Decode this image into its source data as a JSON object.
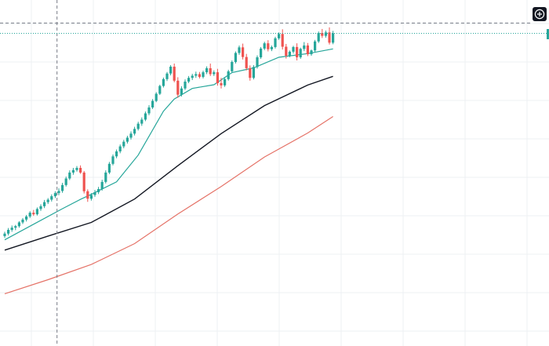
{
  "colors": {
    "background": "#ffffff",
    "grid": "#eef0f3",
    "up": "#26a69a",
    "down": "#ef5350",
    "ma_fast": "#26a69a",
    "ma_mid": "#131722",
    "ma_slow": "#e57368",
    "crosshair": "#787b86",
    "last_price_line": "#26a69a"
  },
  "icons": {
    "add_button": "plus-circle-icon"
  },
  "chart_data": {
    "type": "candlestick",
    "title": "",
    "xlabel": "",
    "ylabel": "",
    "x_range": [
      0,
      96
    ],
    "ylim": [
      0,
      100
    ],
    "grid": true,
    "legend": "none",
    "crosshair": {
      "x": 14.5,
      "y": 92.6
    },
    "last_price": 89.3,
    "candles": [
      [
        24.2,
        25.6,
        23.6,
        25.0
      ],
      [
        25.0,
        26.8,
        24.4,
        26.2
      ],
      [
        26.2,
        27.6,
        25.6,
        26.9
      ],
      [
        26.9,
        27.8,
        26.1,
        27.4
      ],
      [
        27.4,
        29.0,
        26.9,
        28.6
      ],
      [
        28.6,
        30.0,
        28.1,
        29.5
      ],
      [
        29.5,
        31.0,
        28.9,
        30.5
      ],
      [
        30.5,
        32.2,
        30.0,
        31.7
      ],
      [
        31.7,
        32.6,
        30.7,
        31.2
      ],
      [
        31.2,
        33.4,
        30.8,
        32.9
      ],
      [
        32.9,
        34.4,
        32.3,
        33.8
      ],
      [
        33.8,
        35.8,
        33.2,
        35.1
      ],
      [
        35.1,
        36.4,
        34.5,
        35.9
      ],
      [
        35.9,
        37.6,
        35.3,
        37.0
      ],
      [
        37.0,
        38.6,
        36.4,
        38.0
      ],
      [
        38.0,
        39.5,
        37.3,
        38.7
      ],
      [
        38.7,
        41.3,
        38.1,
        40.6
      ],
      [
        40.6,
        43.3,
        40.1,
        42.7
      ],
      [
        42.7,
        45.3,
        42.2,
        44.6
      ],
      [
        44.6,
        46.1,
        43.9,
        45.4
      ],
      [
        45.4,
        46.7,
        44.9,
        46.1
      ],
      [
        46.1,
        46.9,
        44.2,
        44.6
      ],
      [
        44.6,
        45.1,
        37.9,
        38.6
      ],
      [
        38.6,
        39.2,
        35.2,
        36.2
      ],
      [
        36.2,
        38.0,
        35.6,
        37.4
      ],
      [
        37.4,
        39.0,
        36.8,
        38.3
      ],
      [
        38.3,
        40.0,
        37.7,
        39.3
      ],
      [
        39.3,
        42.3,
        38.8,
        41.6
      ],
      [
        41.6,
        45.3,
        41.1,
        44.6
      ],
      [
        44.6,
        48.0,
        44.1,
        47.4
      ],
      [
        47.4,
        50.4,
        46.9,
        49.8
      ],
      [
        49.8,
        52.0,
        49.2,
        51.4
      ],
      [
        51.4,
        53.6,
        50.8,
        53.0
      ],
      [
        53.0,
        55.1,
        52.4,
        54.5
      ],
      [
        54.5,
        56.4,
        53.9,
        55.8
      ],
      [
        55.8,
        57.8,
        55.2,
        57.1
      ],
      [
        57.1,
        59.3,
        56.5,
        58.6
      ],
      [
        58.6,
        60.9,
        58.1,
        60.3
      ],
      [
        60.3,
        62.3,
        59.6,
        61.6
      ],
      [
        61.6,
        64.2,
        61.1,
        63.6
      ],
      [
        63.6,
        66.2,
        63.0,
        65.5
      ],
      [
        65.5,
        68.2,
        65.0,
        67.6
      ],
      [
        67.6,
        70.4,
        67.2,
        69.9
      ],
      [
        69.9,
        72.8,
        69.5,
        72.4
      ],
      [
        72.4,
        75.1,
        71.9,
        74.6
      ],
      [
        74.6,
        76.9,
        74.0,
        76.4
      ],
      [
        76.4,
        79.1,
        75.8,
        78.6
      ],
      [
        78.6,
        79.6,
        73.6,
        74.1
      ],
      [
        74.1,
        75.2,
        68.6,
        69.6
      ],
      [
        69.6,
        72.3,
        69.0,
        71.6
      ],
      [
        71.6,
        74.5,
        71.1,
        73.8
      ],
      [
        73.8,
        75.6,
        73.3,
        75.0
      ],
      [
        75.0,
        76.3,
        74.3,
        75.7
      ],
      [
        75.7,
        77.0,
        75.0,
        76.2
      ],
      [
        76.2,
        76.9,
        74.8,
        75.3
      ],
      [
        75.3,
        77.3,
        74.8,
        76.8
      ],
      [
        76.8,
        78.7,
        76.2,
        78.1
      ],
      [
        78.1,
        79.6,
        75.6,
        76.2
      ],
      [
        76.2,
        77.4,
        75.6,
        76.8
      ],
      [
        76.8,
        77.9,
        72.5,
        73.3
      ],
      [
        73.3,
        75.0,
        71.6,
        72.6
      ],
      [
        72.6,
        75.1,
        72.1,
        74.6
      ],
      [
        74.6,
        77.6,
        74.1,
        77.1
      ],
      [
        77.1,
        80.6,
        76.6,
        80.1
      ],
      [
        80.1,
        83.5,
        79.6,
        83.0
      ],
      [
        83.0,
        85.4,
        82.4,
        84.8
      ],
      [
        84.8,
        86.0,
        80.9,
        81.7
      ],
      [
        81.7,
        82.7,
        77.4,
        78.1
      ],
      [
        78.1,
        79.0,
        74.1,
        75.0
      ],
      [
        75.0,
        79.1,
        74.5,
        78.5
      ],
      [
        78.5,
        82.2,
        78.0,
        81.6
      ],
      [
        81.6,
        84.9,
        81.1,
        84.4
      ],
      [
        84.4,
        86.6,
        83.9,
        86.1
      ],
      [
        86.1,
        87.1,
        83.5,
        84.2
      ],
      [
        84.2,
        85.4,
        83.6,
        84.9
      ],
      [
        84.9,
        88.2,
        84.4,
        87.7
      ],
      [
        87.7,
        89.6,
        87.2,
        89.1
      ],
      [
        89.1,
        90.6,
        84.1,
        85.0
      ],
      [
        85.0,
        85.9,
        81.2,
        82.1
      ],
      [
        82.1,
        83.8,
        81.6,
        83.4
      ],
      [
        83.4,
        85.3,
        82.8,
        84.9
      ],
      [
        84.9,
        86.1,
        80.6,
        81.6
      ],
      [
        81.6,
        84.7,
        81.1,
        84.3
      ],
      [
        84.3,
        86.5,
        83.6,
        85.4
      ],
      [
        85.4,
        86.2,
        82.0,
        82.6
      ],
      [
        82.6,
        84.1,
        82.1,
        83.8
      ],
      [
        83.8,
        87.2,
        83.3,
        86.7
      ],
      [
        86.7,
        89.9,
        86.2,
        89.4
      ],
      [
        89.4,
        90.7,
        87.8,
        88.5
      ],
      [
        88.5,
        90.2,
        87.9,
        89.6
      ],
      [
        89.6,
        91.2,
        85.7,
        86.3
      ],
      [
        86.3,
        90.1,
        85.8,
        89.3
      ]
    ],
    "moving_averages": [
      {
        "x": [
          0,
          8,
          16,
          21,
          24,
          31,
          37,
          44,
          47,
          52,
          58,
          63,
          69,
          76,
          84,
          91
        ],
        "values": [
          23.0,
          28.0,
          33.0,
          36.0,
          37.6,
          41.6,
          50.2,
          64.3,
          68.2,
          71.6,
          72.8,
          76.7,
          78.2,
          81.6,
          82.8,
          84.3
        ],
        "color_key": "ma_fast"
      },
      {
        "x": [
          0,
          12,
          24,
          36,
          48,
          60,
          72,
          84,
          91
        ],
        "values": [
          19.7,
          24.2,
          28.6,
          36.1,
          46.8,
          57.1,
          66.1,
          72.7,
          75.5
        ],
        "color_key": "ma_mid"
      },
      {
        "x": [
          0,
          12,
          24,
          36,
          48,
          60,
          72,
          84,
          91
        ],
        "values": [
          5.7,
          10.2,
          15.1,
          21.8,
          31.3,
          40.1,
          49.6,
          57.3,
          62.6
        ],
        "color_key": "ma_slow"
      }
    ]
  }
}
